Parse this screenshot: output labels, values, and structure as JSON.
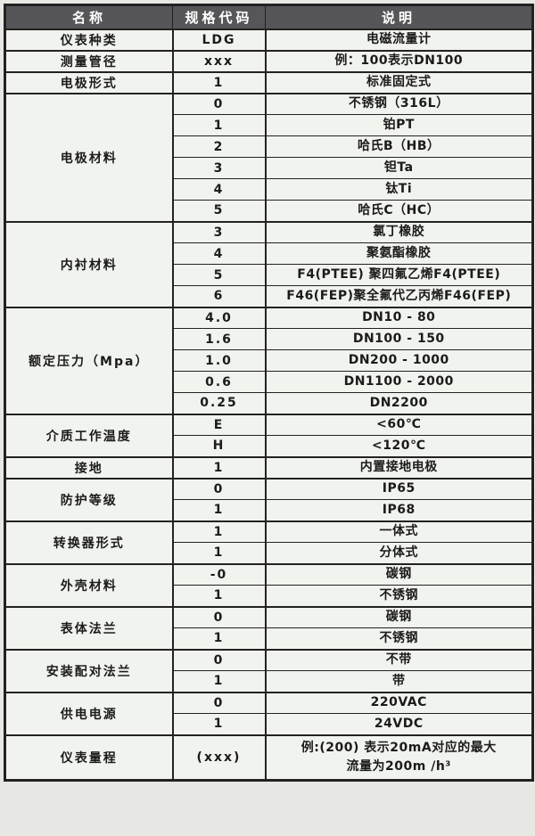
{
  "colors": {
    "page_bg": "#e7e8e4",
    "body_bg": "#f1f4ee",
    "header_bg": "#565558",
    "header_text": "#ffffff",
    "border": "#222222",
    "text": "#1b1b1b"
  },
  "table": {
    "headers": [
      "名称",
      "规格代码",
      "说明"
    ],
    "groups": [
      {
        "name": "仪表种类",
        "rows": [
          {
            "code": "LDG",
            "desc": "电磁流量计"
          }
        ]
      },
      {
        "name": "测量管径",
        "rows": [
          {
            "code": "xxx",
            "desc": "例：100表示DN100"
          }
        ]
      },
      {
        "name": "电极形式",
        "rows": [
          {
            "code": "1",
            "desc": "标准固定式"
          }
        ]
      },
      {
        "name": "电极材料",
        "rows": [
          {
            "code": "0",
            "desc": "不锈钢（316L）"
          },
          {
            "code": "1",
            "desc": "铂PT"
          },
          {
            "code": "2",
            "desc": "哈氏B（HB）"
          },
          {
            "code": "3",
            "desc": "钽Ta"
          },
          {
            "code": "4",
            "desc": "钛Ti"
          },
          {
            "code": "5",
            "desc": "哈氏C（HC）"
          }
        ]
      },
      {
        "name": "内衬材料",
        "rows": [
          {
            "code": "3",
            "desc": "氯丁橡胶"
          },
          {
            "code": "4",
            "desc": "聚氨酯橡胶"
          },
          {
            "code": "5",
            "desc": "F4(PTEE) 聚四氟乙烯F4(PTEE)"
          },
          {
            "code": "6",
            "desc": "F46(FEP)聚全氟代乙丙烯F46(FEP)"
          }
        ]
      },
      {
        "name": "额定压力（Mpa）",
        "rows": [
          {
            "code": "4.0",
            "desc": "DN10 - 80"
          },
          {
            "code": "1.6",
            "desc": "DN100 - 150"
          },
          {
            "code": "1.0",
            "desc": "DN200 - 1000"
          },
          {
            "code": "0.6",
            "desc": "DN1100 - 2000"
          },
          {
            "code": "0.25",
            "desc": "DN2200"
          }
        ]
      },
      {
        "name": "介质工作温度",
        "rows": [
          {
            "code": "E",
            "desc": "<60℃"
          },
          {
            "code": "H",
            "desc": "<120℃"
          }
        ]
      },
      {
        "name": "接地",
        "rows": [
          {
            "code": "1",
            "desc": "内置接地电极"
          }
        ]
      },
      {
        "name": "防护等级",
        "rows": [
          {
            "code": "0",
            "desc": "IP65"
          },
          {
            "code": "1",
            "desc": "IP68"
          }
        ]
      },
      {
        "name": "转换器形式",
        "rows": [
          {
            "code": "1",
            "desc": "一体式"
          },
          {
            "code": "1",
            "desc": "分体式"
          }
        ]
      },
      {
        "name": "外壳材料",
        "rows": [
          {
            "code": "-0",
            "desc": "碳钢"
          },
          {
            "code": "1",
            "desc": "不锈钢"
          }
        ]
      },
      {
        "name": "表体法兰",
        "rows": [
          {
            "code": "0",
            "desc": "碳钢"
          },
          {
            "code": "1",
            "desc": "不锈钢"
          }
        ]
      },
      {
        "name": "安装配对法兰",
        "rows": [
          {
            "code": "0",
            "desc": "不带"
          },
          {
            "code": "1",
            "desc": "带"
          }
        ]
      },
      {
        "name": "供电电源",
        "rows": [
          {
            "code": "0",
            "desc": "220VAC"
          },
          {
            "code": "1",
            "desc": "24VDC"
          }
        ]
      },
      {
        "name": "仪表量程",
        "rows": [
          {
            "code": "(xxx)",
            "desc": [
              "例:(200) 表示20mA对应的最大",
              "流量为200m /h³"
            ]
          }
        ]
      }
    ]
  }
}
